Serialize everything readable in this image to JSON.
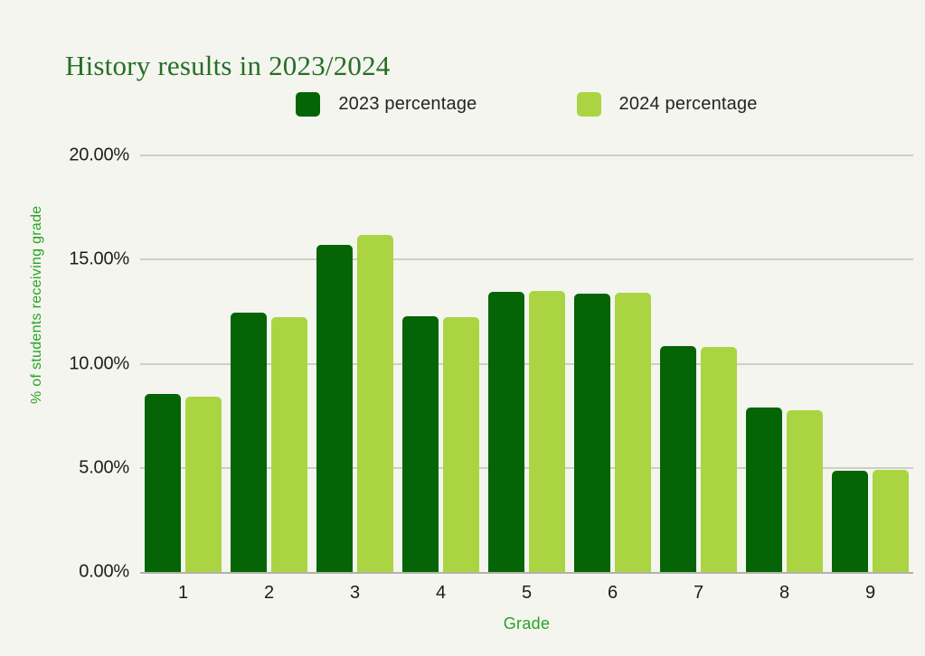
{
  "page": {
    "background_color": "#f4f5ee"
  },
  "chart_data": {
    "type": "bar",
    "title": "History results in 2023/2024",
    "title_color": "#266e26",
    "categories": [
      "1",
      "2",
      "3",
      "4",
      "5",
      "6",
      "7",
      "8",
      "9"
    ],
    "series": [
      {
        "name": "2023 percentage",
        "color": "#056405",
        "values": [
          8.55,
          12.45,
          15.7,
          12.3,
          13.45,
          13.35,
          10.85,
          7.9,
          4.85
        ]
      },
      {
        "name": "2024 percentage",
        "color": "#abd443",
        "values": [
          8.4,
          12.25,
          16.2,
          12.25,
          13.5,
          13.4,
          10.8,
          7.75,
          4.9
        ]
      }
    ],
    "xlabel": "Grade",
    "ylabel": "% of students receiving grade",
    "axis_label_color": "#27a327",
    "tick_label_color": "#1d1d1b",
    "gridline_color": "#cdd0c5",
    "axis_line_color": "#b0b2a8",
    "ylim": [
      0,
      20
    ],
    "yticks": [
      {
        "value": 0,
        "label": "0.00%"
      },
      {
        "value": 5,
        "label": "5.00%"
      },
      {
        "value": 10,
        "label": "10.00%"
      },
      {
        "value": 15,
        "label": "15.00%"
      },
      {
        "value": 20,
        "label": "20.00%"
      }
    ],
    "grid": true,
    "legend_position": "top"
  }
}
